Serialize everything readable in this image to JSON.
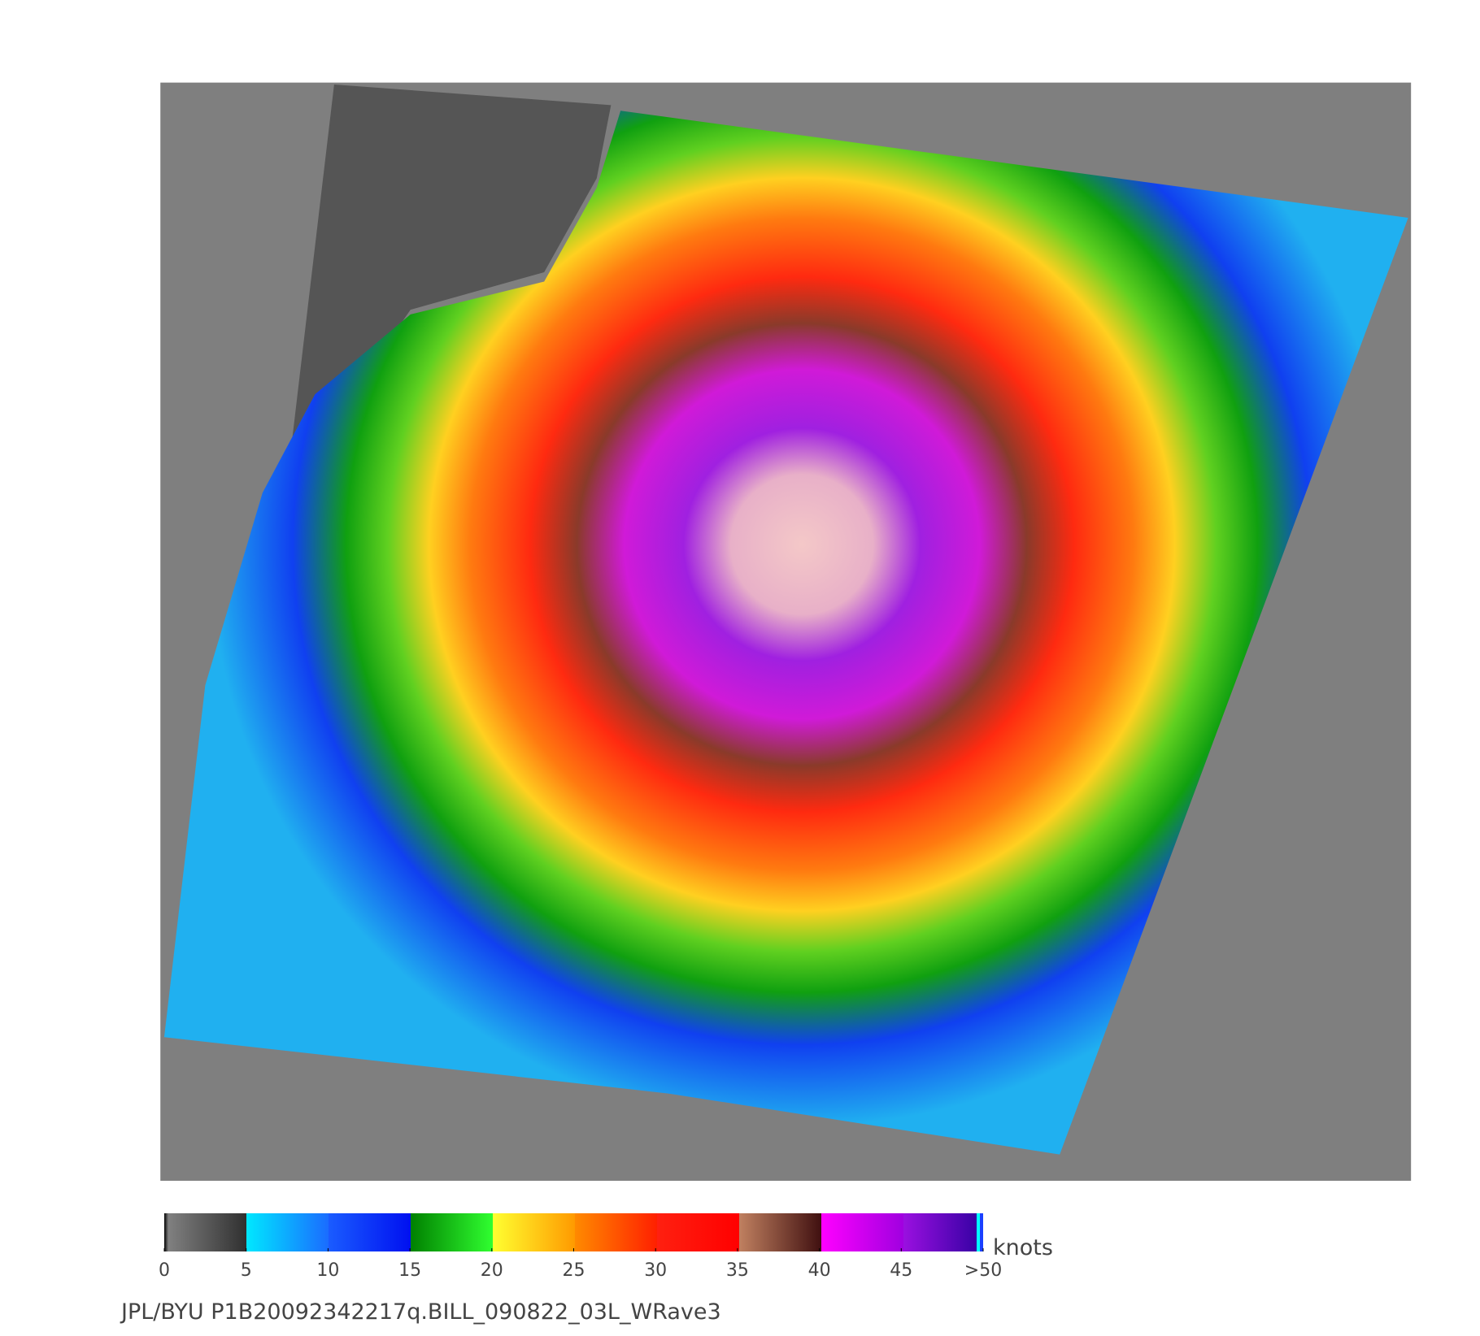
{
  "colorbar": {
    "ticks": [
      0,
      5,
      10,
      15,
      20,
      25,
      30,
      35,
      40,
      45,
      {
        "value": 50,
        "label": ">50"
      }
    ],
    "unit": "knots",
    "range": [
      0,
      50
    ]
  },
  "footer": "JPL/BYU  P1B20092342217q.BILL_090822_03L_WRave3"
}
